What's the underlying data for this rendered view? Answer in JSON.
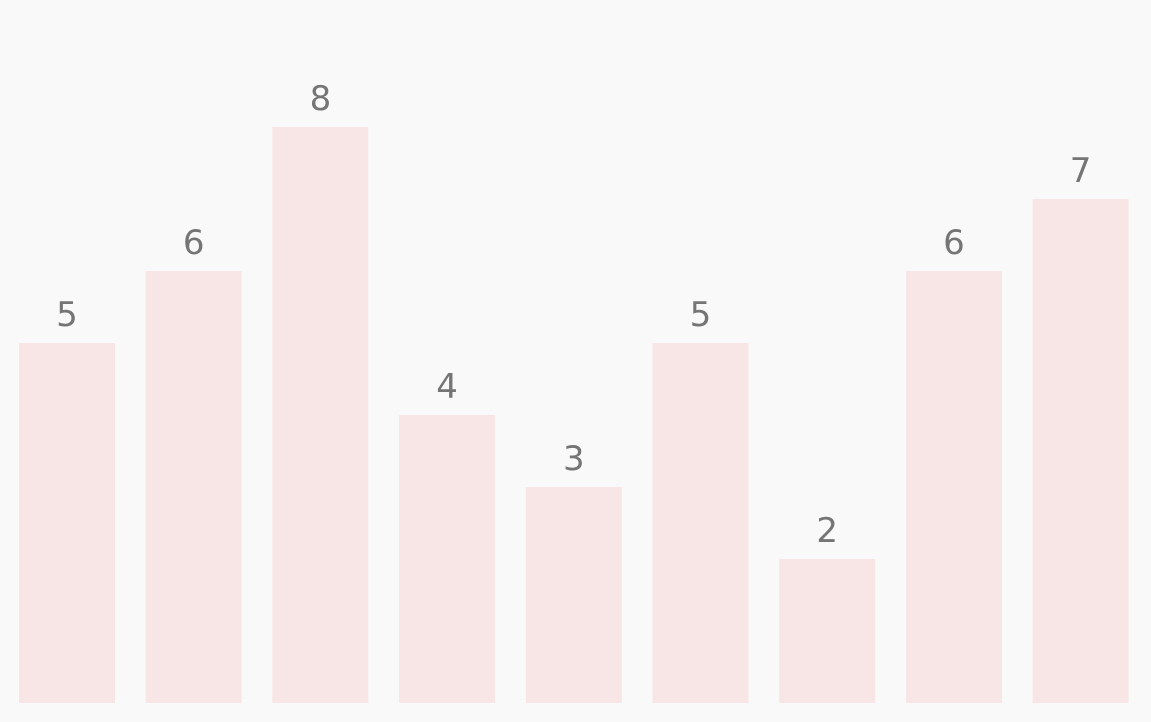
{
  "chart_data": {
    "type": "bar",
    "categories": [
      "",
      "",
      "",
      "",
      "",
      "",
      "",
      "",
      ""
    ],
    "values": [
      5,
      6,
      8,
      4,
      3,
      5,
      2,
      6,
      7
    ],
    "ylim": [
      0,
      10
    ],
    "grid": false,
    "colors": {
      "bar": "#f8e5e5",
      "label": "#757575",
      "background": "#faf9fa"
    }
  }
}
